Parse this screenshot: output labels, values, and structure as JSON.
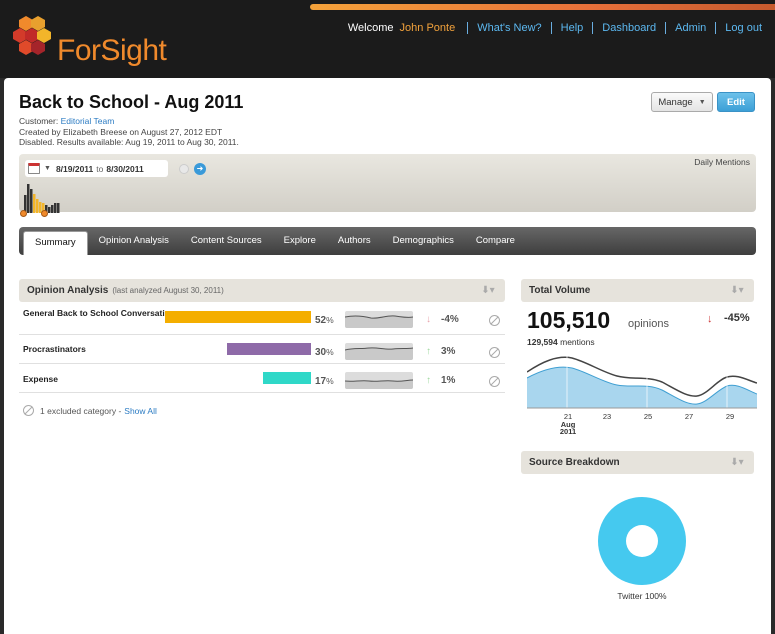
{
  "header": {
    "logo_text": "ForSight",
    "welcome": "Welcome",
    "user": "John Ponte",
    "nav": [
      "What's New?",
      "Help",
      "Dashboard",
      "Admin",
      "Log out"
    ]
  },
  "page": {
    "title": "Back to School - Aug 2011",
    "customer_label": "Customer:",
    "customer": "Editorial Team",
    "created": "Created by Elizabeth Breese on August 27, 2012 EDT",
    "status": "Disabled. Results available: Aug 19, 2011 to Aug 30, 2011.",
    "manage_label": "Manage",
    "edit_label": "Edit"
  },
  "timeline": {
    "start": "8/19/2011",
    "to": "to",
    "end": "8/30/2011",
    "label": "Daily Mentions",
    "bars": [
      0.55,
      0.9,
      0.75,
      0.6,
      0.45,
      0.35,
      0.3,
      0.25,
      0.2,
      0.25,
      0.3,
      0.3
    ],
    "highlight_color": "#f2b52a"
  },
  "tabs": [
    "Summary",
    "Opinion Analysis",
    "Content Sources",
    "Explore",
    "Authors",
    "Demographics",
    "Compare"
  ],
  "opinion": {
    "title": "Opinion Analysis",
    "subtitle": "(last analyzed August 30, 2011)",
    "rows": [
      {
        "name": "General Back to School Conversation",
        "pct": "52",
        "pct_value": 52,
        "delta": "-4%",
        "trend": "down",
        "color": "#f4ae00"
      },
      {
        "name": "Procrastinators",
        "pct": "30",
        "pct_value": 30,
        "delta": "3%",
        "trend": "up",
        "color": "#8e6aa8"
      },
      {
        "name": "Expense",
        "pct": "17",
        "pct_value": 17,
        "delta": "1%",
        "trend": "up",
        "color": "#2fd8c8"
      }
    ],
    "excluded_text": "1 excluded category -",
    "show_all": "Show All"
  },
  "total_volume": {
    "title": "Total Volume",
    "value": "105,510",
    "unit": "opinions",
    "delta": "-45%",
    "mentions_value": "129,594",
    "mentions_label": "mentions",
    "x_ticks": [
      "21",
      "23",
      "25",
      "27",
      "29"
    ],
    "month": "Aug",
    "year": "2011",
    "accent": "#aad6ee"
  },
  "source_breakdown": {
    "title": "Source Breakdown",
    "label": "Twitter 100%",
    "color": "#45c9ef"
  }
}
